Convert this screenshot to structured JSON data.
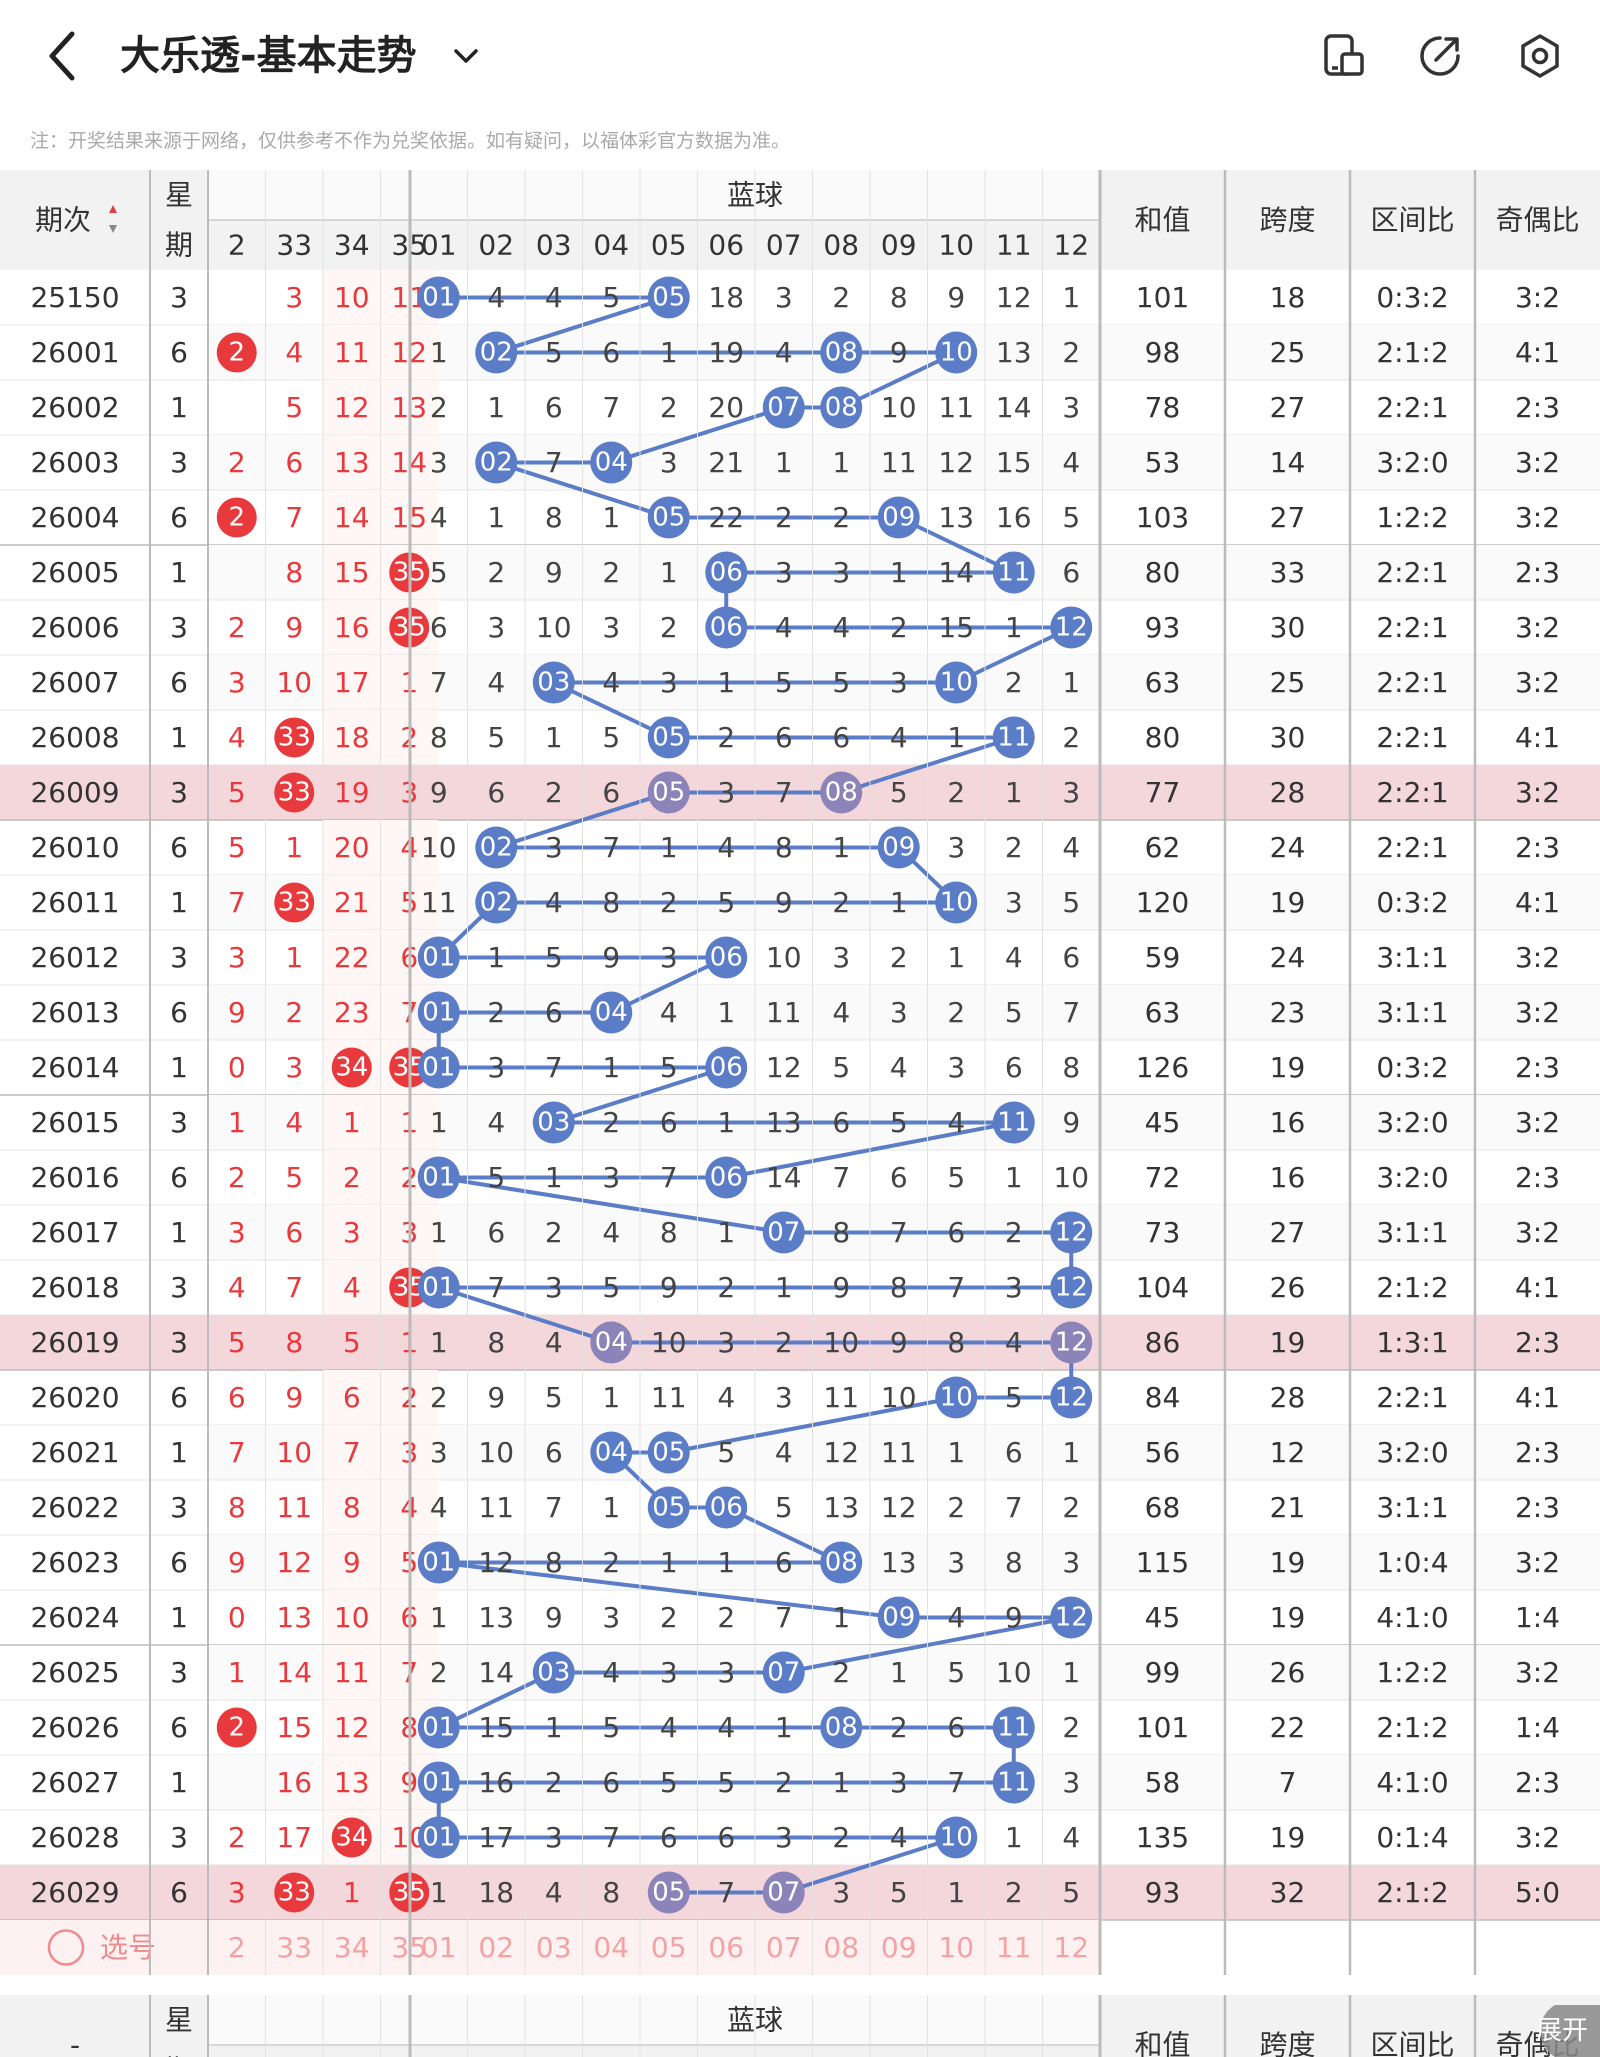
{
  "header": {
    "title": "大乐透-基本走势",
    "back_icon": "back-arrow-icon",
    "dropdown_icon": "chevron-down-icon",
    "icons": [
      "phone-layout-icon",
      "share-icon",
      "settings-icon"
    ]
  },
  "note": "注：开奖结果来源于网络，仅供参考不作为兑奖依据。如有疑问，以福体彩官方数据为准。",
  "table": {
    "col_period": "期次",
    "col_week": "星期",
    "blue_group": "蓝球",
    "col_sum": "和值",
    "col_span": "跨度",
    "col_zone": "区间比",
    "col_oddeven": "奇偶比",
    "red_cols": [
      "2",
      "33",
      "34",
      "35"
    ],
    "blue_cols": [
      "01",
      "02",
      "03",
      "04",
      "05",
      "06",
      "07",
      "08",
      "09",
      "10",
      "11",
      "12"
    ],
    "rows": [
      {
        "p": "25150",
        "w": "3",
        "r": [
          "",
          "3",
          "10",
          "11"
        ],
        "b": [
          "01",
          "4",
          "4",
          "5",
          "05",
          "18",
          "3",
          "2",
          "8",
          "9",
          "12",
          "1"
        ],
        "s": "101",
        "sp": "18",
        "z": "0:3:2",
        "oe": "3:2"
      },
      {
        "p": "26001",
        "w": "6",
        "r": [
          "2",
          "4",
          "11",
          "12"
        ],
        "b": [
          "1",
          "02",
          "5",
          "6",
          "1",
          "19",
          "4",
          "08",
          "9",
          "10",
          "13",
          "2"
        ],
        "s": "98",
        "sp": "25",
        "z": "2:1:2",
        "oe": "4:1"
      },
      {
        "p": "26002",
        "w": "1",
        "r": [
          "",
          "5",
          "12",
          "13"
        ],
        "b": [
          "2",
          "1",
          "6",
          "7",
          "2",
          "20",
          "07",
          "08",
          "10",
          "11",
          "14",
          "3"
        ],
        "s": "78",
        "sp": "27",
        "z": "2:2:1",
        "oe": "2:3"
      },
      {
        "p": "26003",
        "w": "3",
        "r": [
          "2",
          "6",
          "13",
          "14"
        ],
        "b": [
          "3",
          "02",
          "7",
          "04",
          "3",
          "21",
          "1",
          "1",
          "11",
          "12",
          "15",
          "4"
        ],
        "s": "53",
        "sp": "14",
        "z": "3:2:0",
        "oe": "3:2"
      },
      {
        "p": "26004",
        "w": "6",
        "r": [
          "2",
          "7",
          "14",
          "15"
        ],
        "b": [
          "4",
          "1",
          "8",
          "1",
          "05",
          "22",
          "2",
          "2",
          "09",
          "13",
          "16",
          "5"
        ],
        "s": "103",
        "sp": "27",
        "z": "1:2:2",
        "oe": "3:2"
      },
      {
        "p": "26005",
        "w": "1",
        "r": [
          "",
          "8",
          "15",
          "35"
        ],
        "b": [
          "5",
          "2",
          "9",
          "2",
          "1",
          "06",
          "3",
          "3",
          "1",
          "14",
          "11",
          "6"
        ],
        "s": "80",
        "sp": "33",
        "z": "2:2:1",
        "oe": "2:3"
      },
      {
        "p": "26006",
        "w": "3",
        "r": [
          "2",
          "9",
          "16",
          "35"
        ],
        "b": [
          "6",
          "3",
          "10",
          "3",
          "2",
          "06",
          "4",
          "4",
          "2",
          "15",
          "1",
          "12"
        ],
        "s": "93",
        "sp": "30",
        "z": "2:2:1",
        "oe": "3:2"
      },
      {
        "p": "26007",
        "w": "6",
        "r": [
          "3",
          "10",
          "17",
          "1"
        ],
        "b": [
          "7",
          "4",
          "03",
          "4",
          "3",
          "1",
          "5",
          "5",
          "3",
          "10",
          "2",
          "1"
        ],
        "s": "63",
        "sp": "25",
        "z": "2:2:1",
        "oe": "3:2"
      },
      {
        "p": "26008",
        "w": "1",
        "r": [
          "4",
          "33",
          "18",
          "2"
        ],
        "b": [
          "8",
          "5",
          "1",
          "5",
          "05",
          "2",
          "6",
          "6",
          "4",
          "1",
          "11",
          "2"
        ],
        "s": "80",
        "sp": "30",
        "z": "2:2:1",
        "oe": "4:1"
      },
      {
        "p": "26009",
        "w": "3",
        "r": [
          "5",
          "33",
          "19",
          "3"
        ],
        "b": [
          "9",
          "6",
          "2",
          "6",
          "05",
          "3",
          "7",
          "08",
          "5",
          "2",
          "1",
          "3"
        ],
        "s": "77",
        "sp": "28",
        "z": "2:2:1",
        "oe": "3:2",
        "hl": true
      },
      {
        "p": "26010",
        "w": "6",
        "r": [
          "5",
          "1",
          "20",
          "4"
        ],
        "b": [
          "10",
          "02",
          "3",
          "7",
          "1",
          "4",
          "8",
          "1",
          "09",
          "3",
          "2",
          "4"
        ],
        "s": "62",
        "sp": "24",
        "z": "2:2:1",
        "oe": "2:3"
      },
      {
        "p": "26011",
        "w": "1",
        "r": [
          "7",
          "33",
          "21",
          "5"
        ],
        "b": [
          "11",
          "02",
          "4",
          "8",
          "2",
          "5",
          "9",
          "2",
          "1",
          "10",
          "3",
          "5"
        ],
        "s": "120",
        "sp": "19",
        "z": "0:3:2",
        "oe": "4:1"
      },
      {
        "p": "26012",
        "w": "3",
        "r": [
          "3",
          "1",
          "22",
          "6"
        ],
        "b": [
          "01",
          "1",
          "5",
          "9",
          "3",
          "06",
          "10",
          "3",
          "2",
          "1",
          "4",
          "6"
        ],
        "s": "59",
        "sp": "24",
        "z": "3:1:1",
        "oe": "3:2"
      },
      {
        "p": "26013",
        "w": "6",
        "r": [
          "9",
          "2",
          "23",
          "7"
        ],
        "b": [
          "01",
          "2",
          "6",
          "04",
          "4",
          "1",
          "11",
          "4",
          "3",
          "2",
          "5",
          "7"
        ],
        "s": "63",
        "sp": "23",
        "z": "3:1:1",
        "oe": "3:2"
      },
      {
        "p": "26014",
        "w": "1",
        "r": [
          "0",
          "3",
          "34",
          "35"
        ],
        "b": [
          "01",
          "3",
          "7",
          "1",
          "5",
          "06",
          "12",
          "5",
          "4",
          "3",
          "6",
          "8"
        ],
        "s": "126",
        "sp": "19",
        "z": "0:3:2",
        "oe": "2:3"
      },
      {
        "p": "26015",
        "w": "3",
        "r": [
          "1",
          "4",
          "1",
          "1"
        ],
        "b": [
          "1",
          "4",
          "03",
          "2",
          "6",
          "1",
          "13",
          "6",
          "5",
          "4",
          "11",
          "9"
        ],
        "s": "45",
        "sp": "16",
        "z": "3:2:0",
        "oe": "3:2"
      },
      {
        "p": "26016",
        "w": "6",
        "r": [
          "2",
          "5",
          "2",
          "2"
        ],
        "b": [
          "01",
          "5",
          "1",
          "3",
          "7",
          "06",
          "14",
          "7",
          "6",
          "5",
          "1",
          "10"
        ],
        "s": "72",
        "sp": "16",
        "z": "3:2:0",
        "oe": "2:3"
      },
      {
        "p": "26017",
        "w": "1",
        "r": [
          "3",
          "6",
          "3",
          "3"
        ],
        "b": [
          "1",
          "6",
          "2",
          "4",
          "8",
          "1",
          "07",
          "8",
          "7",
          "6",
          "2",
          "12"
        ],
        "s": "73",
        "sp": "27",
        "z": "3:1:1",
        "oe": "3:2"
      },
      {
        "p": "26018",
        "w": "3",
        "r": [
          "4",
          "7",
          "4",
          "35"
        ],
        "b": [
          "01",
          "7",
          "3",
          "5",
          "9",
          "2",
          "1",
          "9",
          "8",
          "7",
          "3",
          "12"
        ],
        "s": "104",
        "sp": "26",
        "z": "2:1:2",
        "oe": "4:1"
      },
      {
        "p": "26019",
        "w": "3",
        "r": [
          "5",
          "8",
          "5",
          "1"
        ],
        "b": [
          "1",
          "8",
          "4",
          "04",
          "10",
          "3",
          "2",
          "10",
          "9",
          "8",
          "4",
          "12"
        ],
        "s": "86",
        "sp": "19",
        "z": "1:3:1",
        "oe": "2:3",
        "hl": true
      },
      {
        "p": "26020",
        "w": "6",
        "r": [
          "6",
          "9",
          "6",
          "2"
        ],
        "b": [
          "2",
          "9",
          "5",
          "1",
          "11",
          "4",
          "3",
          "11",
          "10",
          "10",
          "5",
          "12"
        ],
        "s": "84",
        "sp": "28",
        "z": "2:2:1",
        "oe": "4:1"
      },
      {
        "p": "26021",
        "w": "1",
        "r": [
          "7",
          "10",
          "7",
          "3"
        ],
        "b": [
          "3",
          "10",
          "6",
          "04",
          "05",
          "5",
          "4",
          "12",
          "11",
          "1",
          "6",
          "1"
        ],
        "s": "56",
        "sp": "12",
        "z": "3:2:0",
        "oe": "2:3"
      },
      {
        "p": "26022",
        "w": "3",
        "r": [
          "8",
          "11",
          "8",
          "4"
        ],
        "b": [
          "4",
          "11",
          "7",
          "1",
          "05",
          "06",
          "5",
          "13",
          "12",
          "2",
          "7",
          "2"
        ],
        "s": "68",
        "sp": "21",
        "z": "3:1:1",
        "oe": "2:3"
      },
      {
        "p": "26023",
        "w": "6",
        "r": [
          "9",
          "12",
          "9",
          "5"
        ],
        "b": [
          "01",
          "12",
          "8",
          "2",
          "1",
          "1",
          "6",
          "08",
          "13",
          "3",
          "8",
          "3"
        ],
        "s": "115",
        "sp": "19",
        "z": "1:0:4",
        "oe": "3:2"
      },
      {
        "p": "26024",
        "w": "1",
        "r": [
          "0",
          "13",
          "10",
          "6"
        ],
        "b": [
          "1",
          "13",
          "9",
          "3",
          "2",
          "2",
          "7",
          "1",
          "09",
          "4",
          "9",
          "12"
        ],
        "s": "45",
        "sp": "19",
        "z": "4:1:0",
        "oe": "1:4"
      },
      {
        "p": "26025",
        "w": "3",
        "r": [
          "1",
          "14",
          "11",
          "7"
        ],
        "b": [
          "2",
          "14",
          "03",
          "4",
          "3",
          "3",
          "07",
          "2",
          "1",
          "5",
          "10",
          "1"
        ],
        "s": "99",
        "sp": "26",
        "z": "1:2:2",
        "oe": "3:2"
      },
      {
        "p": "26026",
        "w": "6",
        "r": [
          "2",
          "15",
          "12",
          "8"
        ],
        "b": [
          "01",
          "15",
          "1",
          "5",
          "4",
          "4",
          "1",
          "08",
          "2",
          "6",
          "11",
          "2"
        ],
        "s": "101",
        "sp": "22",
        "z": "2:1:2",
        "oe": "1:4"
      },
      {
        "p": "26027",
        "w": "1",
        "r": [
          "",
          "16",
          "13",
          "9"
        ],
        "b": [
          "01",
          "16",
          "2",
          "6",
          "5",
          "5",
          "2",
          "1",
          "3",
          "7",
          "11",
          "3"
        ],
        "s": "58",
        "sp": "7",
        "z": "4:1:0",
        "oe": "2:3"
      },
      {
        "p": "26028",
        "w": "3",
        "r": [
          "2",
          "17",
          "34",
          "10"
        ],
        "b": [
          "01",
          "17",
          "3",
          "7",
          "6",
          "6",
          "3",
          "2",
          "4",
          "10",
          "1",
          "4"
        ],
        "s": "135",
        "sp": "19",
        "z": "0:1:4",
        "oe": "3:2"
      },
      {
        "p": "26029",
        "w": "6",
        "r": [
          "3",
          "33",
          "1",
          "35"
        ],
        "b": [
          "1",
          "18",
          "4",
          "8",
          "05",
          "7",
          "07",
          "3",
          "5",
          "1",
          "2",
          "5"
        ],
        "s": "93",
        "sp": "32",
        "z": "2:1:2",
        "oe": "5:0",
        "hl": true
      }
    ],
    "pick_label": "选号",
    "footer_period": "-",
    "expand_label": "展开"
  },
  "colors": {
    "red": "#e8393d",
    "blue_ball": "#5b7cc7",
    "line": "#5b7cc7",
    "highlight": "#f4d7db",
    "header_bg": "#f2f2f2"
  }
}
